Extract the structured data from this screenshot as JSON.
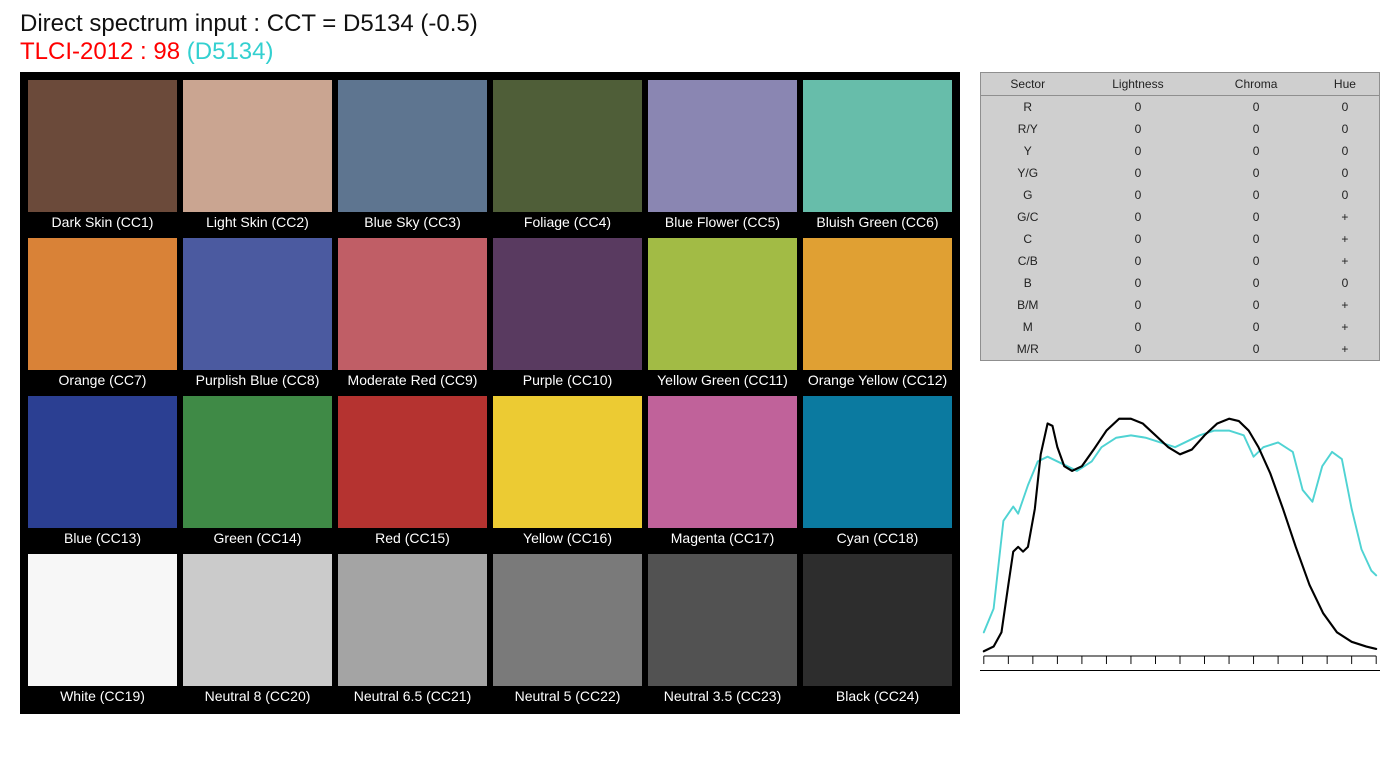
{
  "header": {
    "line1": "Direct spectrum input : CCT = D5134 (-0.5)",
    "tlci_label": "TLCI-2012 : ",
    "tlci_score": "98 ",
    "tlci_ref": "(D5134)"
  },
  "colorchecker": {
    "background_color": "#000000",
    "label_color": "#ffffff",
    "label_fontsize": 14,
    "columns": 6,
    "swatches": [
      {
        "name": "Dark Skin (CC1)",
        "color": "#6b4a3a"
      },
      {
        "name": "Light Skin (CC2)",
        "color": "#caa591"
      },
      {
        "name": "Blue Sky (CC3)",
        "color": "#5e7590"
      },
      {
        "name": "Foliage (CC4)",
        "color": "#4f5e38"
      },
      {
        "name": "Blue Flower (CC5)",
        "color": "#8a86b2"
      },
      {
        "name": "Bluish Green (CC6)",
        "color": "#67bdaa"
      },
      {
        "name": "Orange (CC7)",
        "color": "#d98237"
      },
      {
        "name": "Purplish Blue (CC8)",
        "color": "#4b5aa0"
      },
      {
        "name": "Moderate Red (CC9)",
        "color": "#c05e66"
      },
      {
        "name": "Purple (CC10)",
        "color": "#593a60"
      },
      {
        "name": "Yellow Green (CC11)",
        "color": "#a2bb45"
      },
      {
        "name": "Orange Yellow (CC12)",
        "color": "#e0a033"
      },
      {
        "name": "Blue (CC13)",
        "color": "#2b3f92"
      },
      {
        "name": "Green (CC14)",
        "color": "#3f8a46"
      },
      {
        "name": "Red (CC15)",
        "color": "#b53330"
      },
      {
        "name": "Yellow (CC16)",
        "color": "#eccb33"
      },
      {
        "name": "Magenta (CC17)",
        "color": "#c0629a"
      },
      {
        "name": "Cyan (CC18)",
        "color": "#0b7aa0"
      },
      {
        "name": "White (CC19)",
        "color": "#f7f7f7"
      },
      {
        "name": "Neutral 8 (CC20)",
        "color": "#cbcbcb"
      },
      {
        "name": "Neutral 6.5 (CC21)",
        "color": "#a4a4a4"
      },
      {
        "name": "Neutral 5 (CC22)",
        "color": "#7a7a7a"
      },
      {
        "name": "Neutral 3.5 (CC23)",
        "color": "#525252"
      },
      {
        "name": "Black (CC24)",
        "color": "#2d2d2d"
      }
    ]
  },
  "sector_table": {
    "background_color": "#cfcfcf",
    "border_color": "#8f8f8f",
    "fontsize": 12,
    "columns": [
      "Sector",
      "Lightness",
      "Chroma",
      "Hue"
    ],
    "rows": [
      [
        "R",
        "0",
        "0",
        "0"
      ],
      [
        "R/Y",
        "0",
        "0",
        "0"
      ],
      [
        "Y",
        "0",
        "0",
        "0"
      ],
      [
        "Y/G",
        "0",
        "0",
        "0"
      ],
      [
        "G",
        "0",
        "0",
        "0"
      ],
      [
        "G/C",
        "0",
        "0",
        "+"
      ],
      [
        "C",
        "0",
        "0",
        "+"
      ],
      [
        "C/B",
        "0",
        "0",
        "+"
      ],
      [
        "B",
        "0",
        "0",
        "0"
      ],
      [
        "B/M",
        "0",
        "0",
        "+"
      ],
      [
        "M",
        "0",
        "0",
        "+"
      ],
      [
        "M/R",
        "0",
        "0",
        "+"
      ]
    ]
  },
  "spectrum_chart": {
    "type": "line",
    "xlim": [
      380,
      780
    ],
    "ylim": [
      0,
      110
    ],
    "xtick_step": 25,
    "axis_color": "#000000",
    "background_color": "#ffffff",
    "series": [
      {
        "name": "reference",
        "color": "#4fd3d3",
        "line_width": 2,
        "points": [
          [
            380,
            10
          ],
          [
            390,
            20
          ],
          [
            400,
            57
          ],
          [
            410,
            63
          ],
          [
            415,
            60
          ],
          [
            425,
            72
          ],
          [
            435,
            82
          ],
          [
            445,
            84
          ],
          [
            455,
            82
          ],
          [
            465,
            80
          ],
          [
            475,
            78
          ],
          [
            490,
            82
          ],
          [
            500,
            88
          ],
          [
            515,
            92
          ],
          [
            530,
            93
          ],
          [
            545,
            92
          ],
          [
            560,
            90
          ],
          [
            575,
            88
          ],
          [
            585,
            90
          ],
          [
            600,
            93
          ],
          [
            615,
            95
          ],
          [
            630,
            95
          ],
          [
            645,
            93
          ],
          [
            655,
            84
          ],
          [
            665,
            88
          ],
          [
            680,
            90
          ],
          [
            695,
            86
          ],
          [
            705,
            70
          ],
          [
            715,
            65
          ],
          [
            725,
            80
          ],
          [
            735,
            86
          ],
          [
            745,
            83
          ],
          [
            755,
            62
          ],
          [
            765,
            45
          ],
          [
            775,
            36
          ],
          [
            780,
            34
          ]
        ]
      },
      {
        "name": "test",
        "color": "#000000",
        "line_width": 2.2,
        "points": [
          [
            380,
            2
          ],
          [
            390,
            4
          ],
          [
            398,
            10
          ],
          [
            405,
            30
          ],
          [
            410,
            44
          ],
          [
            415,
            46
          ],
          [
            420,
            44
          ],
          [
            425,
            46
          ],
          [
            432,
            62
          ],
          [
            438,
            85
          ],
          [
            445,
            98
          ],
          [
            450,
            97
          ],
          [
            455,
            88
          ],
          [
            462,
            80
          ],
          [
            470,
            78
          ],
          [
            480,
            80
          ],
          [
            492,
            87
          ],
          [
            505,
            95
          ],
          [
            518,
            100
          ],
          [
            530,
            100
          ],
          [
            542,
            98
          ],
          [
            555,
            93
          ],
          [
            568,
            88
          ],
          [
            580,
            85
          ],
          [
            592,
            87
          ],
          [
            605,
            93
          ],
          [
            618,
            98
          ],
          [
            630,
            100
          ],
          [
            640,
            99
          ],
          [
            650,
            95
          ],
          [
            660,
            88
          ],
          [
            672,
            77
          ],
          [
            685,
            62
          ],
          [
            698,
            46
          ],
          [
            712,
            30
          ],
          [
            726,
            18
          ],
          [
            740,
            10
          ],
          [
            755,
            6
          ],
          [
            770,
            4
          ],
          [
            780,
            3
          ]
        ]
      }
    ]
  }
}
